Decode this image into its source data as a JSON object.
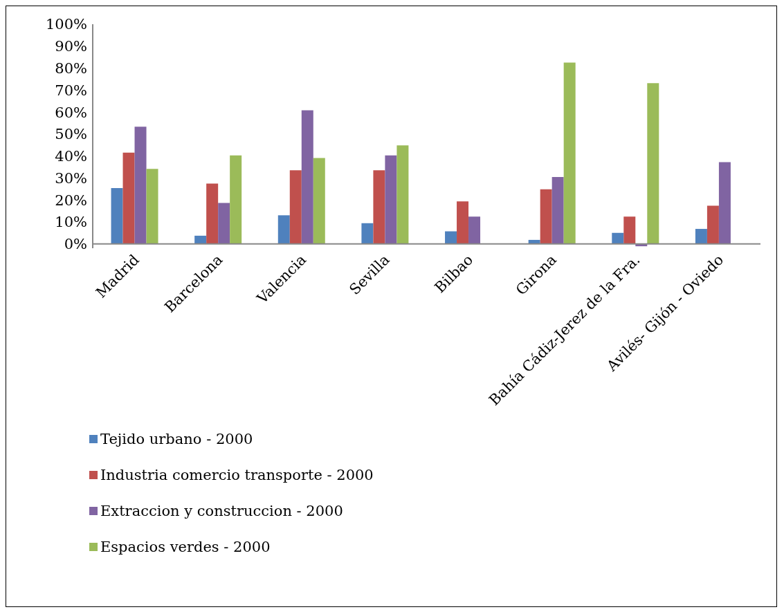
{
  "chart_data": {
    "type": "bar",
    "categories": [
      "Madrid",
      "Barcelona",
      "Valencia",
      "Sevilla",
      "Bilbao",
      "Girona",
      "Bahía Cádiz-Jerez de la Fra.",
      "Avilés- Gijón - Oviedo"
    ],
    "series": [
      {
        "name": "Tejido urbano - 2000",
        "color": "#4f81bd",
        "values": [
          25.4,
          3.7,
          13.0,
          9.4,
          5.7,
          1.8,
          5.0,
          6.8
        ]
      },
      {
        "name": "Industria comercio transporte - 2000",
        "color": "#c0504d",
        "values": [
          41.5,
          27.4,
          33.5,
          33.5,
          19.3,
          24.8,
          12.4,
          17.4
        ]
      },
      {
        "name": "Extraccion y construccion - 2000",
        "color": "#8064a2",
        "values": [
          53.3,
          18.6,
          60.8,
          40.3,
          12.4,
          30.4,
          -1.1,
          37.2
        ]
      },
      {
        "name": "Espacios verdes - 2000",
        "color": "#9bbb59",
        "values": [
          34.1,
          40.3,
          39.1,
          44.8,
          null,
          82.5,
          73.2,
          null
        ]
      }
    ],
    "ylim": [
      -2,
      100
    ],
    "yticks": [
      {
        "value": 0,
        "label": "0%"
      },
      {
        "value": 10,
        "label": "10%"
      },
      {
        "value": 20,
        "label": "20%"
      },
      {
        "value": 30,
        "label": "30%"
      },
      {
        "value": 40,
        "label": "40%"
      },
      {
        "value": 50,
        "label": "50%"
      },
      {
        "value": 60,
        "label": "60%"
      },
      {
        "value": 70,
        "label": "70%"
      },
      {
        "value": 80,
        "label": "80%"
      },
      {
        "value": 90,
        "label": "90%"
      },
      {
        "value": 100,
        "label": "100%"
      }
    ],
    "grid": false,
    "legend": "bottom left"
  }
}
